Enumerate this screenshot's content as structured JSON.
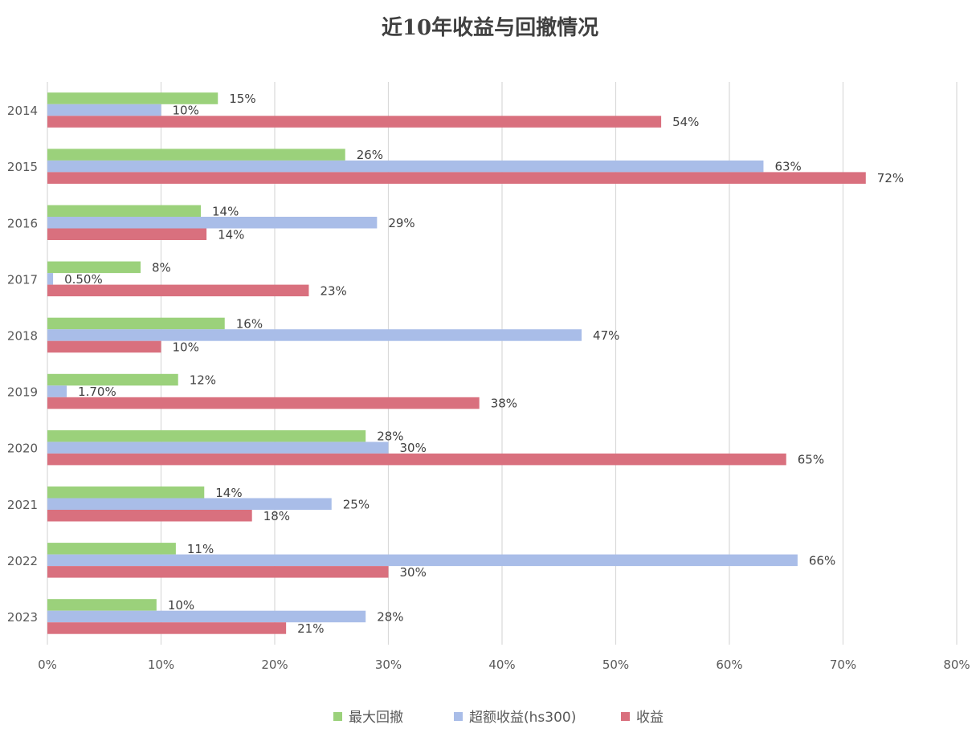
{
  "chart_data": {
    "type": "bar",
    "orientation": "horizontal",
    "title": "近10年收益与回撤情况",
    "xlabel": "",
    "ylabel": "",
    "categories": [
      "2014",
      "2015",
      "2016",
      "2017",
      "2018",
      "2019",
      "2020",
      "2021",
      "2022",
      "2023"
    ],
    "series": [
      {
        "name": "最大回撤",
        "color": "#9bd17b",
        "values": [
          15,
          26.2,
          13.5,
          8.2,
          15.6,
          11.5,
          28,
          13.8,
          11.3,
          9.6
        ],
        "labels": [
          "15%",
          "26%",
          "14%",
          "8%",
          "16%",
          "12%",
          "28%",
          "14%",
          "11%",
          "10%"
        ]
      },
      {
        "name": "超额收益(hs300)",
        "color": "#a9bde8",
        "values": [
          10,
          63,
          29,
          0.5,
          47,
          1.7,
          30,
          25,
          66,
          28
        ],
        "labels": [
          "10%",
          "63%",
          "29%",
          "0.50%",
          "47%",
          "1.70%",
          "30%",
          "25%",
          "66%",
          "28%"
        ]
      },
      {
        "name": "收益",
        "color": "#d9707e",
        "values": [
          54,
          72,
          14,
          23,
          10,
          38,
          65,
          18,
          30,
          21
        ],
        "labels": [
          "54%",
          "72%",
          "14%",
          "23%",
          "10%",
          "38%",
          "65%",
          "18%",
          "30%",
          "21%"
        ]
      }
    ],
    "xticks": [
      "0%",
      "10%",
      "20%",
      "30%",
      "40%",
      "50%",
      "60%",
      "70%",
      "80%"
    ],
    "xlim": [
      0,
      80
    ],
    "grid": true,
    "legend": "bottom"
  }
}
